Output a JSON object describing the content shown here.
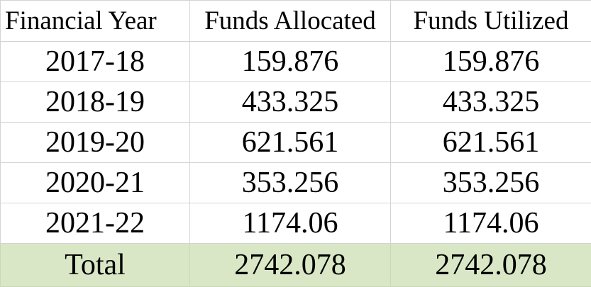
{
  "table": {
    "headers": [
      "Financial Year",
      "Funds Allocated",
      "Funds Utilized"
    ],
    "rows": [
      [
        "2017-18",
        "159.876",
        "159.876"
      ],
      [
        "2018-19",
        "433.325",
        "433.325"
      ],
      [
        "2019-20",
        "621.561",
        "621.561"
      ],
      [
        "2020-21",
        "353.256",
        "353.256"
      ],
      [
        "2021-22",
        "1174.06",
        "1174.06"
      ]
    ],
    "total": [
      "Total",
      "2742.078",
      "2742.078"
    ]
  },
  "colors": {
    "total_row_fill": "#d9e7c6",
    "gridline": "#d4d4d4"
  }
}
